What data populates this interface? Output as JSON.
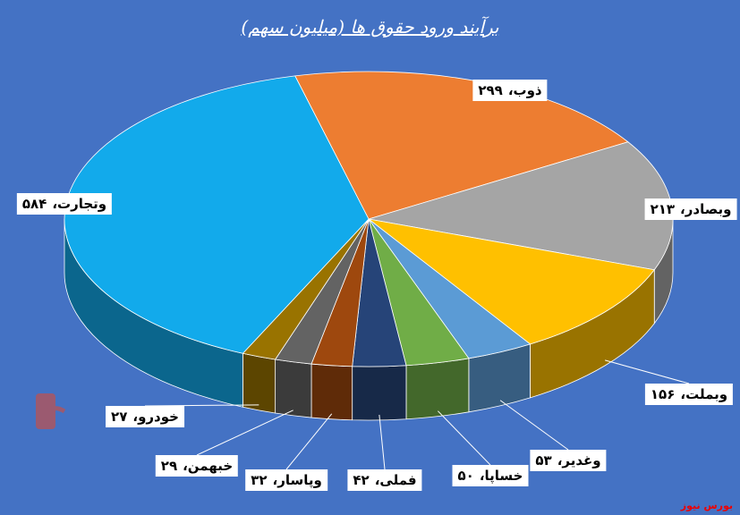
{
  "chart_data": {
    "type": "pie3d",
    "title": "برآیند ورود حقوق ها (میلیون سهم)",
    "categories": [
      "ذوب،",
      "وبصادر،",
      "وبملت،",
      "وغدیر،",
      "خساپا،",
      "فملی،",
      "وپاسار،",
      "خبهمن،",
      "خودرو،",
      "وتجارت،"
    ],
    "values": [
      299,
      213,
      156,
      53,
      50,
      42,
      32,
      29,
      27,
      584
    ],
    "value_labels": [
      "۲۹۹",
      "۲۱۳",
      "۱۵۶",
      "۵۳",
      "۵۰",
      "۴۲",
      "۳۲",
      "۲۹",
      "۲۷",
      "۵۸۴"
    ],
    "colors": [
      "#ed7d31",
      "#a5a5a5",
      "#ffc000",
      "#5b9bd5",
      "#70ad47",
      "#264478",
      "#9e480e",
      "#636363",
      "#997300",
      "#12aaeb"
    ],
    "source": "بورس نیوز"
  }
}
